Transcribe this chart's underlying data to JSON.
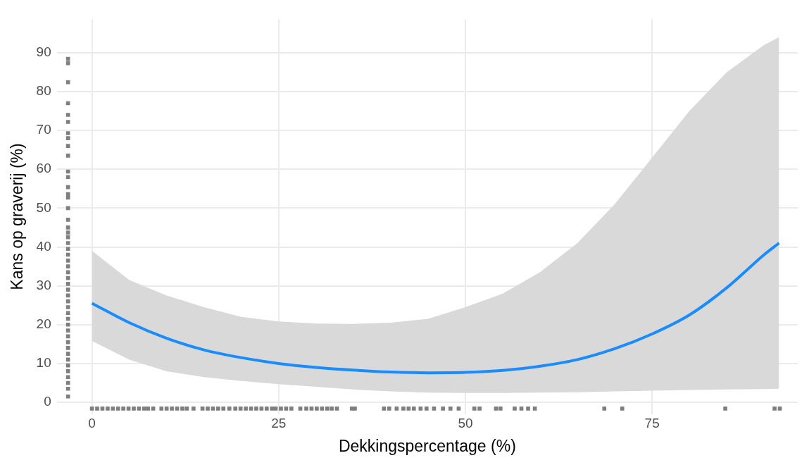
{
  "chart_data": {
    "type": "line",
    "xlabel": "Dekkingspercentage (%)",
    "ylabel": "Kans op graverij (%)",
    "xlim": [
      -4.7,
      94.5
    ],
    "ylim": [
      -3,
      98.6
    ],
    "xticks": [
      0,
      25,
      50,
      75
    ],
    "yticks": [
      0,
      10,
      20,
      30,
      40,
      50,
      60,
      70,
      80,
      90
    ],
    "grid": true,
    "legend": false,
    "series": [
      {
        "color": "#1a8cff",
        "x": [
          0,
          5,
          10,
          15,
          20,
          25,
          30,
          35,
          40,
          45,
          50,
          55,
          60,
          65,
          70,
          75,
          80,
          85,
          90,
          92
        ],
        "values": [
          25.5,
          20.5,
          16.5,
          13.5,
          11.5,
          10,
          9,
          8.3,
          7.8,
          7.6,
          7.7,
          8.2,
          9.3,
          11,
          13.8,
          17.6,
          22.5,
          29.5,
          38,
          41
        ],
        "lower": [
          15.8,
          11,
          8,
          6.5,
          5.5,
          4.7,
          4,
          3.3,
          2.8,
          2.5,
          2.4,
          2.4,
          2.5,
          2.6,
          2.8,
          3,
          3.2,
          3.3,
          3.4,
          3.5
        ],
        "upper": [
          39,
          31.5,
          27.5,
          24.5,
          22,
          20.8,
          20.3,
          20.2,
          20.5,
          21.5,
          24.5,
          28,
          33.5,
          41,
          51,
          63,
          75,
          85,
          92,
          94
        ]
      },
      {
        "type": "scatter",
        "color": "#7f7f7f",
        "marker": "square",
        "x": [
          0,
          0.7,
          1.4,
          2.1,
          2.8,
          3.5,
          4.2,
          4.9,
          5.6,
          6.3,
          7.0,
          7.5,
          8.2,
          9.3,
          10,
          10.7,
          11.4,
          12.1,
          12.7,
          13.6,
          14.8,
          15.5,
          16.2,
          16.9,
          17.6,
          18.4,
          19.2,
          19.9,
          20.6,
          21.3,
          22,
          22.7,
          23.4,
          24.1,
          24.6,
          25.3,
          26,
          26.7,
          27.9,
          28.7,
          29.4,
          30.1,
          30.8,
          31.5,
          32.1,
          32.8,
          34.8,
          35.2,
          39.1,
          39.8,
          40.8,
          41.7,
          42.4,
          43.1,
          44,
          44.8,
          45.8,
          47,
          48,
          49.1,
          51.2,
          51.9,
          54.1,
          54.7,
          56.6,
          57.5,
          58.4,
          59.3,
          68.6,
          71,
          84.8,
          91.4,
          92.1
        ],
        "values": [
          -1.6,
          -1.6,
          -1.6,
          -1.6,
          -1.6,
          -1.6,
          -1.6,
          -1.6,
          -1.6,
          -1.6,
          -1.6,
          -1.6,
          -1.6,
          -1.6,
          -1.6,
          -1.6,
          -1.6,
          -1.6,
          -1.6,
          -1.6,
          -1.6,
          -1.6,
          -1.6,
          -1.6,
          -1.6,
          -1.6,
          -1.6,
          -1.6,
          -1.6,
          -1.6,
          -1.6,
          -1.6,
          -1.6,
          -1.6,
          -1.6,
          -1.6,
          -1.6,
          -1.6,
          -1.6,
          -1.6,
          -1.6,
          -1.6,
          -1.6,
          -1.6,
          -1.6,
          -1.6,
          -1.6,
          -1.6,
          -1.6,
          -1.6,
          -1.6,
          -1.6,
          -1.6,
          -1.6,
          -1.6,
          -1.6,
          -1.6,
          -1.6,
          -1.6,
          -1.6,
          -1.6,
          -1.6,
          -1.6,
          -1.6,
          -1.6,
          -1.6,
          -1.6,
          -1.6,
          -1.6,
          -1.6,
          -1.6,
          -1.6,
          -1.6
        ]
      },
      {
        "type": "scatter",
        "color": "#7f7f7f",
        "marker": "square",
        "x": [
          -3.2,
          -3.2,
          -3.2,
          -3.2,
          -3.2,
          -3.2,
          -3.2,
          -3.2,
          -3.2,
          -3.2,
          -3.2,
          -3.2,
          -3.2,
          -3.2,
          -3.2,
          -3.2,
          -3.2,
          -3.2,
          -3.2,
          -3.2,
          -3.2,
          -3.2,
          -3.2,
          -3.2,
          -3.2,
          -3.2,
          -3.2,
          -3.2,
          -3.2,
          -3.2,
          -3.2,
          -3.2,
          -3.2,
          -3.2,
          -3.2,
          -3.2,
          -3.2,
          -3.2,
          -3.2,
          -3.2,
          -3.2,
          -3.2,
          -3.2,
          -3.2,
          -3.2,
          -3.2,
          -3.2
        ],
        "values": [
          1.5,
          3.5,
          5,
          6.5,
          8,
          9.5,
          11,
          12.5,
          14,
          15.5,
          17,
          18.5,
          20,
          21.5,
          23,
          24.5,
          26,
          27.5,
          29,
          30.5,
          32,
          33.5,
          35,
          36.5,
          38,
          39.5,
          41,
          42.5,
          43.7,
          45,
          47,
          50,
          52.7,
          53.6,
          55.4,
          58,
          59.4,
          63.5,
          66,
          68,
          69.3,
          72.2,
          74,
          77,
          82.4,
          87.3,
          88.4
        ]
      }
    ]
  }
}
